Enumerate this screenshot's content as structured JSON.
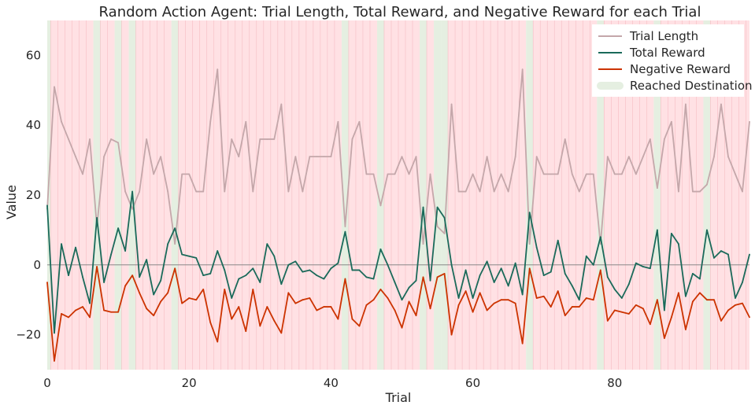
{
  "chart_data": {
    "type": "line",
    "title": "Random Action Agent: Trial Length, Total Reward, and Negative Reward for each Trial",
    "xlabel": "Trial",
    "ylabel": "Value",
    "xlim": [
      0,
      99
    ],
    "ylim": [
      -30,
      70
    ],
    "xticks": [
      0,
      20,
      40,
      60,
      80
    ],
    "yticks": [
      -20,
      0,
      20,
      40,
      60
    ],
    "grid": false,
    "legend_position": "top-right",
    "zero_line": 0,
    "series": [
      {
        "name": "Trial Length",
        "color": "#c4a7aa",
        "values": [
          16,
          51,
          41,
          36,
          31,
          26,
          36,
          11,
          31,
          36,
          35,
          21,
          16,
          21,
          36,
          26,
          31,
          21,
          6,
          26,
          26,
          21,
          21,
          41,
          56,
          21,
          36,
          31,
          41,
          21,
          36,
          36,
          36,
          46,
          21,
          31,
          21,
          31,
          31,
          31,
          31,
          41,
          11,
          36,
          41,
          26,
          26,
          17,
          26,
          26,
          31,
          26,
          31,
          6,
          26,
          11,
          9,
          46,
          21,
          21,
          26,
          21,
          31,
          21,
          26,
          21,
          31,
          56,
          6,
          31,
          26,
          26,
          26,
          36,
          26,
          21,
          26,
          26,
          6,
          31,
          26,
          26,
          31,
          26,
          31,
          36,
          22,
          36,
          41,
          21,
          46,
          21,
          21,
          23,
          31,
          46,
          31,
          26,
          21,
          41
        ]
      },
      {
        "name": "Total Reward",
        "color": "#1a6a5a",
        "values": [
          17,
          -19.5,
          6,
          -3,
          5,
          -3.5,
          -11,
          13.5,
          -5,
          3,
          10.5,
          4,
          21,
          -3.5,
          1.5,
          -8.5,
          -4.5,
          6,
          10.5,
          3,
          2.5,
          2,
          -3,
          -2.5,
          4,
          -1.5,
          -9.5,
          -4,
          -3,
          -1,
          -5,
          6,
          2.5,
          -5.5,
          0,
          1,
          -2,
          -1.5,
          -3,
          -4,
          -1,
          0.5,
          9.5,
          -1.5,
          -1.5,
          -3.5,
          -4,
          4.5,
          0,
          -5,
          -10,
          -6.5,
          -4.5,
          16.5,
          -4.5,
          16.5,
          13.5,
          0,
          -9.5,
          -1.5,
          -9.5,
          -3,
          1,
          -5,
          -1,
          -6,
          0.5,
          -8.5,
          15,
          5,
          -3,
          -2,
          7,
          -2.5,
          -6,
          -10,
          2.5,
          0,
          8,
          -3.5,
          -7,
          -9.5,
          -5.5,
          0.5,
          -0.5,
          -1,
          10,
          -13,
          9,
          6,
          -9,
          -2.5,
          -4,
          10,
          2,
          4,
          3,
          -9.5,
          -5,
          3
        ]
      },
      {
        "name": "Negative Reward",
        "color": "#cc3300",
        "values": [
          -5,
          -27.5,
          -14,
          -15,
          -13,
          -12,
          -15,
          -0.5,
          -13,
          -13.5,
          -13.5,
          -6,
          -3,
          -8,
          -12.5,
          -14.5,
          -10.5,
          -8,
          -1,
          -11,
          -9.5,
          -10,
          -7,
          -16.5,
          -22,
          -7,
          -15.5,
          -12,
          -19,
          -7,
          -17.5,
          -12,
          -16,
          -19.5,
          -8,
          -11,
          -10,
          -9.5,
          -13,
          -12,
          -12,
          -15.5,
          -4,
          -15.5,
          -17.5,
          -11.5,
          -10,
          -7,
          -9.5,
          -13,
          -18,
          -10.5,
          -14.5,
          -3.5,
          -12.5,
          -3.5,
          -2.5,
          -20,
          -11.5,
          -7.5,
          -13.5,
          -8,
          -13,
          -11,
          -10,
          -10,
          -11,
          -22.5,
          -1,
          -9.5,
          -9,
          -12,
          -7.5,
          -14.5,
          -12,
          -12,
          -9.5,
          -10,
          -1.5,
          -16,
          -13,
          -13.5,
          -14,
          -11.5,
          -12.5,
          -17,
          -10,
          -21,
          -15,
          -8,
          -18.5,
          -10.5,
          -8,
          -10,
          -10,
          -16,
          -13,
          -11.5,
          -11,
          -15
        ]
      }
    ],
    "background_bands": {
      "name": "Reached Destination",
      "color_reached": "#e5efe1",
      "color_not_reached": "#ffe1e4",
      "reached_trials": [
        0,
        7,
        10,
        12,
        18,
        42,
        47,
        53,
        55,
        56,
        68,
        78,
        86,
        93
      ]
    }
  }
}
